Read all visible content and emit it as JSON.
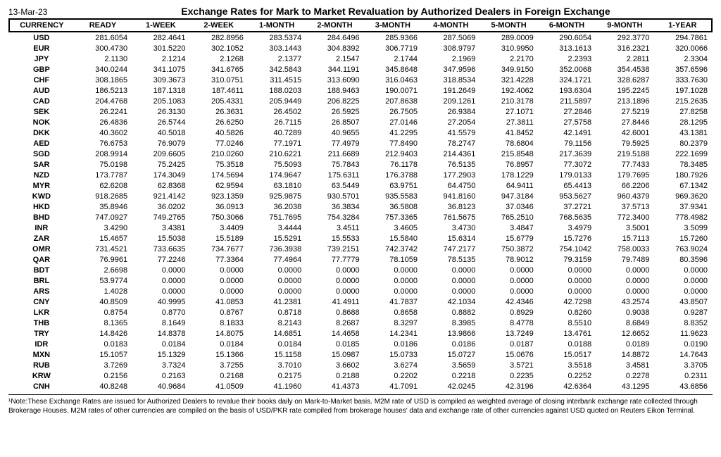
{
  "date": "13-Mar-23",
  "title": "Exchange Rates for Mark to Market Revaluation by Authorized Dealers in Foreign Exchange",
  "columns": [
    "CURRENCY",
    "READY",
    "1-WEEK",
    "2-WEEK",
    "1-MONTH",
    "2-MONTH",
    "3-MONTH",
    "4-MONTH",
    "5-MONTH",
    "6-MONTH",
    "9-MONTH",
    "1-YEAR"
  ],
  "rows": [
    [
      "USD",
      "281.6054",
      "282.4641",
      "282.8956",
      "283.5374",
      "284.6496",
      "285.9366",
      "287.5069",
      "289.0009",
      "290.6054",
      "292.3770",
      "294.7861"
    ],
    [
      "EUR",
      "300.4730",
      "301.5220",
      "302.1052",
      "303.1443",
      "304.8392",
      "306.7719",
      "308.9797",
      "310.9950",
      "313.1613",
      "316.2321",
      "320.0066"
    ],
    [
      "JPY",
      "2.1130",
      "2.1214",
      "2.1268",
      "2.1377",
      "2.1547",
      "2.1744",
      "2.1969",
      "2.2170",
      "2.2393",
      "2.2811",
      "2.3304"
    ],
    [
      "GBP",
      "340.0244",
      "341.1075",
      "341.6765",
      "342.5843",
      "344.1191",
      "345.8648",
      "347.9596",
      "349.9150",
      "352.0068",
      "354.4538",
      "357.6596"
    ],
    [
      "CHF",
      "308.1865",
      "309.3673",
      "310.0751",
      "311.4515",
      "313.6090",
      "316.0463",
      "318.8534",
      "321.4228",
      "324.1721",
      "328.6287",
      "333.7630"
    ],
    [
      "AUD",
      "186.5213",
      "187.1318",
      "187.4611",
      "188.0203",
      "188.9463",
      "190.0071",
      "191.2649",
      "192.4062",
      "193.6304",
      "195.2245",
      "197.1028"
    ],
    [
      "CAD",
      "204.4768",
      "205.1083",
      "205.4331",
      "205.9449",
      "206.8225",
      "207.8638",
      "209.1261",
      "210.3178",
      "211.5897",
      "213.1896",
      "215.2635"
    ],
    [
      "SEK",
      "26.2241",
      "26.3130",
      "26.3631",
      "26.4502",
      "26.5925",
      "26.7505",
      "26.9384",
      "27.1071",
      "27.2846",
      "27.5219",
      "27.8258"
    ],
    [
      "NOK",
      "26.4836",
      "26.5744",
      "26.6250",
      "26.7115",
      "26.8507",
      "27.0146",
      "27.2054",
      "27.3811",
      "27.5758",
      "27.8446",
      "28.1295"
    ],
    [
      "DKK",
      "40.3602",
      "40.5018",
      "40.5826",
      "40.7289",
      "40.9655",
      "41.2295",
      "41.5579",
      "41.8452",
      "42.1491",
      "42.6001",
      "43.1381"
    ],
    [
      "AED",
      "76.6753",
      "76.9079",
      "77.0246",
      "77.1971",
      "77.4979",
      "77.8490",
      "78.2747",
      "78.6804",
      "79.1156",
      "79.5925",
      "80.2379"
    ],
    [
      "SGD",
      "208.9914",
      "209.6605",
      "210.0260",
      "210.6221",
      "211.6689",
      "212.9403",
      "214.4361",
      "215.8548",
      "217.3639",
      "219.5188",
      "222.1699"
    ],
    [
      "SAR",
      "75.0198",
      "75.2425",
      "75.3518",
      "75.5093",
      "75.7843",
      "76.1178",
      "76.5135",
      "76.8957",
      "77.3072",
      "77.7433",
      "78.3485"
    ],
    [
      "NZD",
      "173.7787",
      "174.3049",
      "174.5694",
      "174.9647",
      "175.6311",
      "176.3788",
      "177.2903",
      "178.1229",
      "179.0133",
      "179.7695",
      "180.7926"
    ],
    [
      "MYR",
      "62.6208",
      "62.8368",
      "62.9594",
      "63.1810",
      "63.5449",
      "63.9751",
      "64.4750",
      "64.9411",
      "65.4413",
      "66.2206",
      "67.1342"
    ],
    [
      "KWD",
      "918.2685",
      "921.4142",
      "923.1359",
      "925.9875",
      "930.5701",
      "935.5583",
      "941.8160",
      "947.3184",
      "953.5627",
      "960.4379",
      "969.3620"
    ],
    [
      "HKD",
      "35.8946",
      "36.0202",
      "36.0913",
      "36.2038",
      "36.3834",
      "36.5808",
      "36.8123",
      "37.0346",
      "37.2721",
      "37.5713",
      "37.9341"
    ],
    [
      "BHD",
      "747.0927",
      "749.2765",
      "750.3066",
      "751.7695",
      "754.3284",
      "757.3365",
      "761.5675",
      "765.2510",
      "768.5635",
      "772.3400",
      "778.4982"
    ],
    [
      "INR",
      "3.4290",
      "3.4381",
      "3.4409",
      "3.4444",
      "3.4511",
      "3.4605",
      "3.4730",
      "3.4847",
      "3.4979",
      "3.5001",
      "3.5099"
    ],
    [
      "ZAR",
      "15.4657",
      "15.5038",
      "15.5189",
      "15.5291",
      "15.5533",
      "15.5840",
      "15.6314",
      "15.6779",
      "15.7276",
      "15.7113",
      "15.7260"
    ],
    [
      "OMR",
      "731.4521",
      "733.6635",
      "734.7677",
      "736.3938",
      "739.2151",
      "742.3742",
      "747.2177",
      "750.3872",
      "754.1042",
      "758.0033",
      "763.9024"
    ],
    [
      "QAR",
      "76.9961",
      "77.2246",
      "77.3364",
      "77.4964",
      "77.7779",
      "78.1059",
      "78.5135",
      "78.9012",
      "79.3159",
      "79.7489",
      "80.3596"
    ],
    [
      "BDT",
      "2.6698",
      "0.0000",
      "0.0000",
      "0.0000",
      "0.0000",
      "0.0000",
      "0.0000",
      "0.0000",
      "0.0000",
      "0.0000",
      "0.0000"
    ],
    [
      "BRL",
      "53.9774",
      "0.0000",
      "0.0000",
      "0.0000",
      "0.0000",
      "0.0000",
      "0.0000",
      "0.0000",
      "0.0000",
      "0.0000",
      "0.0000"
    ],
    [
      "ARS",
      "1.4028",
      "0.0000",
      "0.0000",
      "0.0000",
      "0.0000",
      "0.0000",
      "0.0000",
      "0.0000",
      "0.0000",
      "0.0000",
      "0.0000"
    ],
    [
      "CNY",
      "40.8509",
      "40.9995",
      "41.0853",
      "41.2381",
      "41.4911",
      "41.7837",
      "42.1034",
      "42.4346",
      "42.7298",
      "43.2574",
      "43.8507"
    ],
    [
      "LKR",
      "0.8754",
      "0.8770",
      "0.8767",
      "0.8718",
      "0.8688",
      "0.8658",
      "0.8882",
      "0.8929",
      "0.8260",
      "0.9038",
      "0.9287"
    ],
    [
      "THB",
      "8.1365",
      "8.1649",
      "8.1833",
      "8.2143",
      "8.2687",
      "8.3297",
      "8.3985",
      "8.4778",
      "8.5510",
      "8.6849",
      "8.8352"
    ],
    [
      "TRY",
      "14.8426",
      "14.8378",
      "14.8075",
      "14.6851",
      "14.4658",
      "14.2341",
      "13.9866",
      "13.7249",
      "13.4761",
      "12.6652",
      "11.9623"
    ],
    [
      "IDR",
      "0.0183",
      "0.0184",
      "0.0184",
      "0.0184",
      "0.0185",
      "0.0186",
      "0.0186",
      "0.0187",
      "0.0188",
      "0.0189",
      "0.0190"
    ],
    [
      "MXN",
      "15.1057",
      "15.1329",
      "15.1366",
      "15.1158",
      "15.0987",
      "15.0733",
      "15.0727",
      "15.0676",
      "15.0517",
      "14.8872",
      "14.7643"
    ],
    [
      "RUB",
      "3.7269",
      "3.7324",
      "3.7255",
      "3.7010",
      "3.6602",
      "3.6274",
      "3.5659",
      "3.5721",
      "3.5518",
      "3.4581",
      "3.3705"
    ],
    [
      "KRW",
      "0.2156",
      "0.2163",
      "0.2168",
      "0.2175",
      "0.2188",
      "0.2202",
      "0.2218",
      "0.2235",
      "0.2252",
      "0.2278",
      "0.2311"
    ],
    [
      "CNH",
      "40.8248",
      "40.9684",
      "41.0509",
      "41.1960",
      "41.4373",
      "41.7091",
      "42.0245",
      "42.3196",
      "42.6364",
      "43.1295",
      "43.6856"
    ]
  ],
  "footnote": "¹Note:These Exchange Rates are issued for Authorized Dealers to revalue their books daily on Mark-to-Market basis. M2M rate of USD is compiled as weighted average of closing interbank exchange rate collected through Brokerage Houses. M2M rates of other currencies are compiled on the basis of USD/PKR rate compiled from brokerage houses' data and exchange rate of other currencies against USD quoted on Reuters Eikon Terminal.",
  "style": {
    "background_color": "#ffffff",
    "text_color": "#000000",
    "border_color": "#000000",
    "header_fontsize": 11,
    "body_fontsize": 11,
    "title_fontsize": 14,
    "footnote_fontsize": 10,
    "font_family": "Arial"
  }
}
